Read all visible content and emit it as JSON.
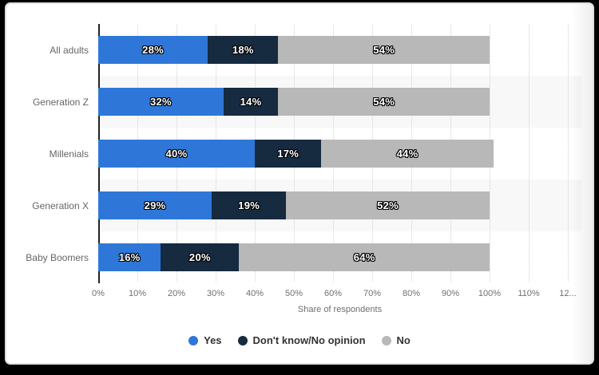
{
  "window": {
    "frame_color": "#000000",
    "card_color": "#ffffff"
  },
  "chart_data": {
    "type": "bar",
    "orientation": "horizontal",
    "stacked": true,
    "categories": [
      "All adults",
      "Generation Z",
      "Millenials",
      "Generation X",
      "Baby Boomers"
    ],
    "series": [
      {
        "name": "Yes",
        "color": "#2e77d8",
        "values": [
          28,
          32,
          40,
          29,
          16
        ]
      },
      {
        "name": "Don't know/No opinion",
        "color": "#162a40",
        "values": [
          18,
          14,
          17,
          19,
          20
        ]
      },
      {
        "name": "No",
        "color": "#b8b8b8",
        "values": [
          54,
          54,
          44,
          52,
          64
        ]
      }
    ],
    "value_label_suffix": "%",
    "xlabel": "Share of respondents",
    "x_tick_labels": [
      "0%",
      "10%",
      "20%",
      "30%",
      "40%",
      "50%",
      "60%",
      "70%",
      "80%",
      "90%",
      "100%",
      "110%",
      "12..."
    ],
    "xlim": [
      0,
      123
    ],
    "grid": "vertical-dotted",
    "row_band_color": "#f8f8f8",
    "legend_position": "bottom-center",
    "text_colors": {
      "category_labels": "#666666",
      "tick_labels": "#6f6f6f",
      "axis_title": "#6f6f6f",
      "legend_labels": "#333333",
      "bar_value_labels": "#ffffff"
    }
  }
}
